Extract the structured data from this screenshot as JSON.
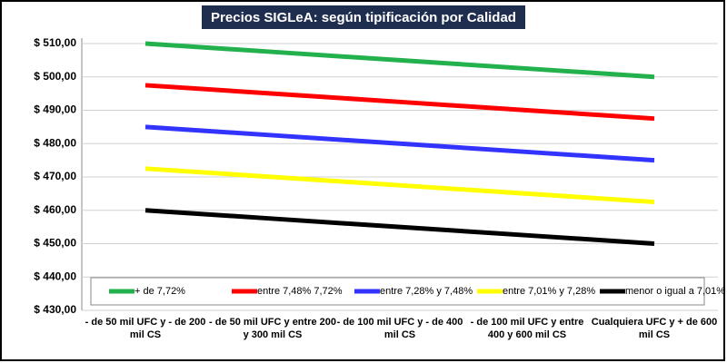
{
  "chart_data": {
    "type": "line",
    "title": "Precios SIGLeA: según tipificación por Calidad",
    "categories": [
      "- de 50 mil UFC y - de 200 mil CS",
      "- de 50 mil UFC y entre  200 y 300 mil CS",
      "- de 100 mil UFC y - de 400 mil CS",
      "- de 100 mil UFC y entre  400 y 600 mil CS",
      "Cualquiera UFC y + de 600 mil CS"
    ],
    "series": [
      {
        "name": "+ de 7,72%",
        "color": "#22b14c",
        "values": [
          510,
          507.5,
          505,
          502.5,
          500
        ]
      },
      {
        "name": "entre 7,48% 7,72%",
        "color": "#ff0000",
        "values": [
          497.5,
          495,
          492.5,
          490,
          487.5
        ]
      },
      {
        "name": "entre 7,28% y 7,48%",
        "color": "#3333ff",
        "values": [
          485,
          482.5,
          480,
          477.5,
          475
        ]
      },
      {
        "name": "entre 7,01% y 7,28%",
        "color": "#ffff00",
        "values": [
          472.5,
          470,
          467.5,
          465,
          462.5
        ]
      },
      {
        "name": "menor o igual a 7,01%",
        "color": "#000000",
        "values": [
          460,
          457.5,
          455,
          452.5,
          450
        ]
      }
    ],
    "ylim": [
      430,
      510
    ],
    "yticks": [
      {
        "value": 430,
        "label": "$ 430,00"
      },
      {
        "value": 440,
        "label": "$ 440,00"
      },
      {
        "value": 450,
        "label": "$ 450,00"
      },
      {
        "value": 460,
        "label": "$ 460,00"
      },
      {
        "value": 470,
        "label": "$ 470,00"
      },
      {
        "value": 480,
        "label": "$ 480,00"
      },
      {
        "value": 490,
        "label": "$ 490,00"
      },
      {
        "value": 500,
        "label": "$ 500,00"
      },
      {
        "value": 510,
        "label": "$ 510,00"
      }
    ],
    "grid": true,
    "legend": "bottom"
  }
}
